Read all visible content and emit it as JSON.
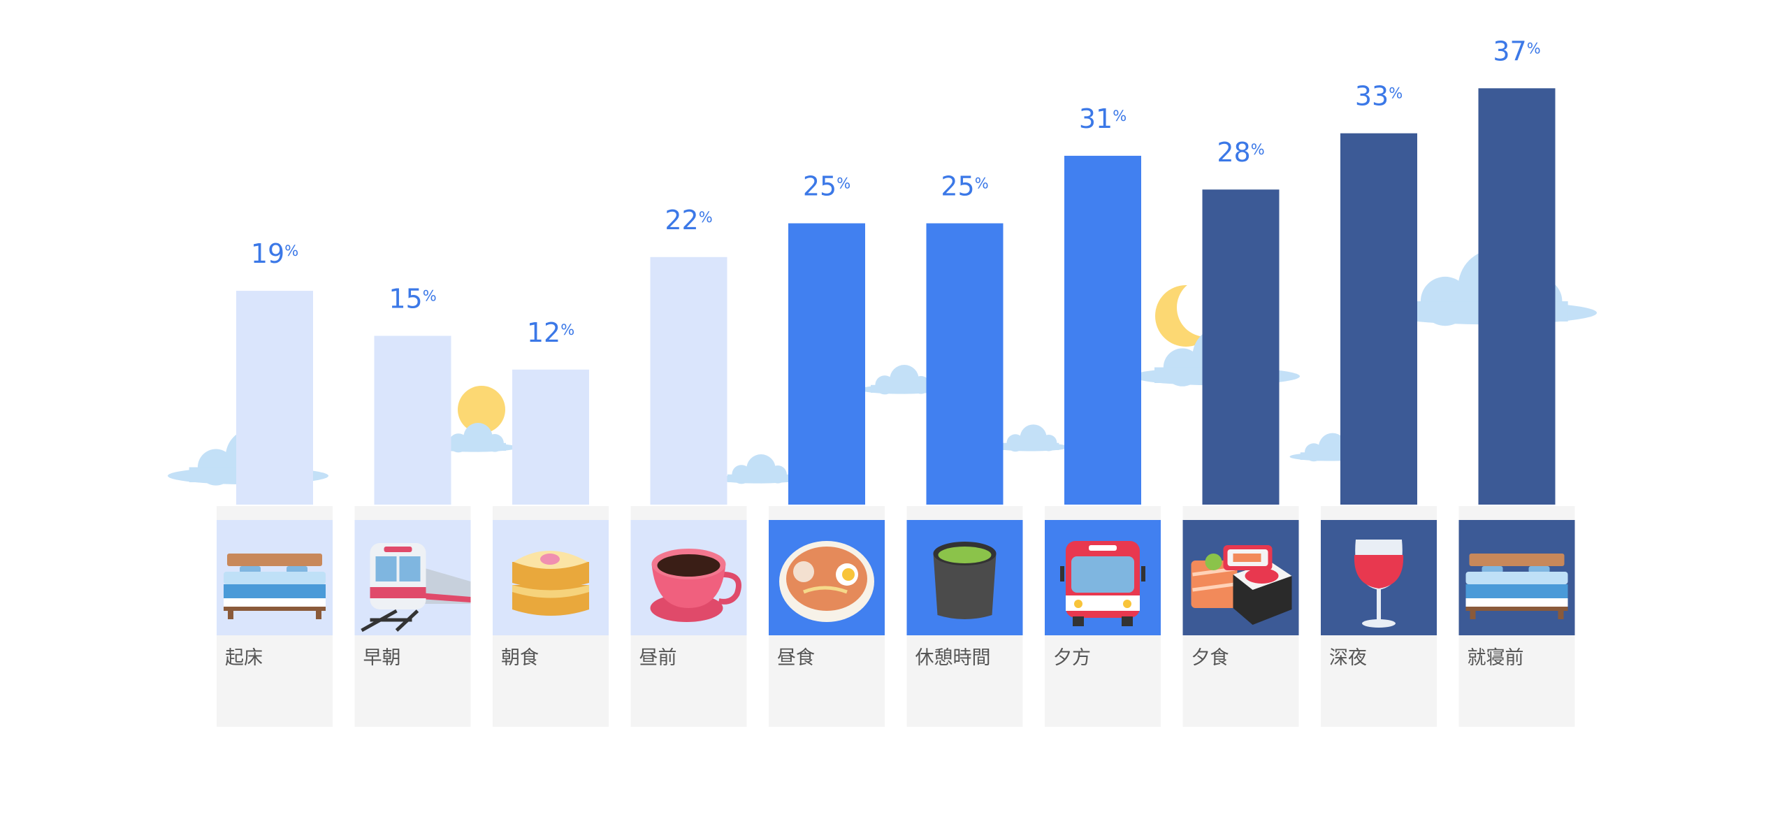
{
  "chart_data": {
    "type": "bar",
    "categories": [
      "起床",
      "早朝",
      "朝食",
      "昼前",
      "昼食",
      "休憩時間",
      "夕方",
      "夕食",
      "深夜",
      "就寝前"
    ],
    "values": [
      19,
      15,
      12,
      22,
      25,
      25,
      31,
      28,
      33,
      37
    ],
    "value_unit": "%",
    "phases": [
      "morning",
      "morning",
      "morning",
      "morning",
      "day",
      "day",
      "day",
      "night",
      "night",
      "night"
    ],
    "icons": [
      "bed-icon",
      "train-icon",
      "toast-icon",
      "coffee-cup-icon",
      "ramen-bowl-icon",
      "green-tea-cup-icon",
      "bus-icon",
      "sushi-icon",
      "wine-glass-icon",
      "bed-icon"
    ],
    "title": "",
    "xlabel": "",
    "ylabel": "",
    "ylim": [
      0,
      40
    ],
    "grid": false,
    "legend": "none"
  },
  "colors": {
    "morning": "#dae5fc",
    "day": "#4180f0",
    "night": "#3c5a96",
    "value_text": "#3b78e7",
    "label_text": "#555555",
    "card_background": "#f4f4f4",
    "cloud": "#c3e0f7",
    "sun": "#fcd873",
    "moon": "#fcd873"
  }
}
